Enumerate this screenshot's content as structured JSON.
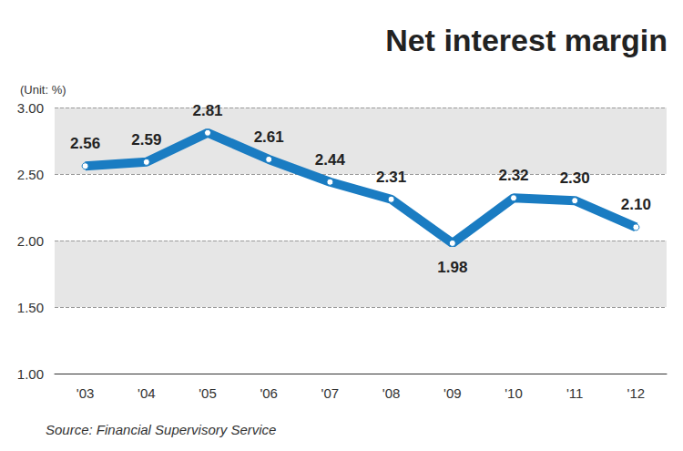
{
  "chart_data": {
    "type": "line",
    "title": "Net interest margin",
    "y_label": "(Unit: %)",
    "source": "Source: Financial Supervisory Service",
    "categories": [
      "'03",
      "'04",
      "'05",
      "'06",
      "'07",
      "'08",
      "'09",
      "'10",
      "'11",
      "'12"
    ],
    "values": [
      2.56,
      2.59,
      2.81,
      2.61,
      2.44,
      2.31,
      1.98,
      2.32,
      2.3,
      2.1
    ],
    "value_labels": [
      "2.56",
      "2.59",
      "2.81",
      "2.61",
      "2.44",
      "2.31",
      "1.98",
      "2.32",
      "2.30",
      "2.10"
    ],
    "color": "#1a7cc2",
    "ylim": [
      1,
      3
    ],
    "yticks": [
      {
        "value": 1,
        "label": "1.00"
      },
      {
        "value": 1.5,
        "label": "1.50"
      },
      {
        "value": 2,
        "label": "2.00"
      },
      {
        "value": 2.5,
        "label": "2.50"
      },
      {
        "value": 3,
        "label": "3.00"
      }
    ],
    "grid": true,
    "data_labels": true,
    "marker": "circle"
  }
}
